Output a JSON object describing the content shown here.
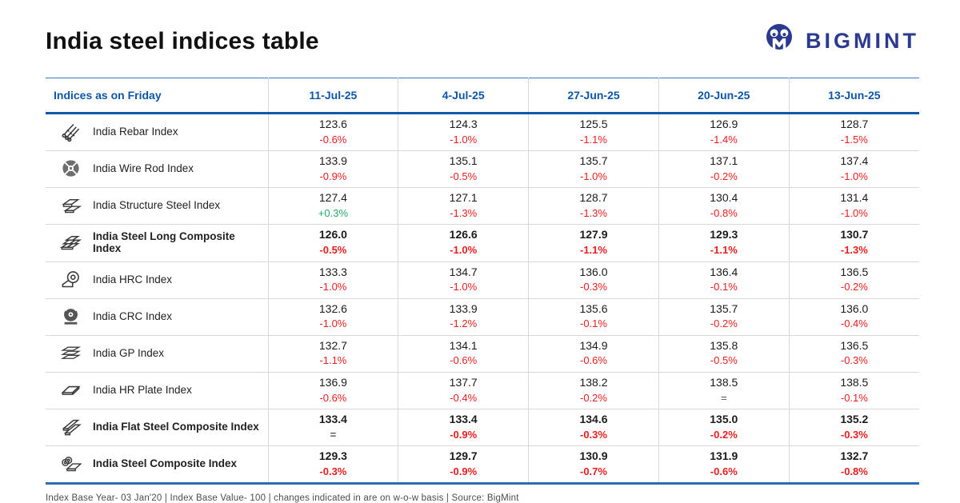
{
  "page": {
    "title": "India steel indices table",
    "brand_name": "BIGMINT",
    "footer": "Index Base Year- 03 Jan'20 | Index Base Value- 100 | changes indicated in are on w-o-w basis | Source: BigMint"
  },
  "colors": {
    "header_blue": "#0e57a8",
    "negative_red": "#ef1d1d",
    "positive_green": "#23ab67",
    "neutral_gray": "#555555",
    "brand_navy": "#2b3a8f"
  },
  "table": {
    "first_column_header": "Indices as on Friday",
    "date_headers": [
      "11-Jul-25",
      "4-Jul-25",
      "27-Jun-25",
      "20-Jun-25",
      "13-Jun-25"
    ],
    "rows": [
      {
        "icon": "rebar-icon",
        "label": "India Rebar Index",
        "bold": false,
        "values": [
          "123.6",
          "124.3",
          "125.5",
          "126.9",
          "128.7"
        ],
        "changes": [
          "-0.6%",
          "-1.0%",
          "-1.1%",
          "-1.4%",
          "-1.5%"
        ]
      },
      {
        "icon": "wire-rod-icon",
        "label": "India Wire Rod Index",
        "bold": false,
        "values": [
          "133.9",
          "135.1",
          "135.7",
          "137.1",
          "137.4"
        ],
        "changes": [
          "-0.9%",
          "-0.5%",
          "-1.0%",
          "-0.2%",
          "-1.0%"
        ]
      },
      {
        "icon": "structure-steel-icon",
        "label": "India Structure Steel Index",
        "bold": false,
        "values": [
          "127.4",
          "127.1",
          "128.7",
          "130.4",
          "131.4"
        ],
        "changes": [
          "+0.3%",
          "-1.3%",
          "-1.3%",
          "-0.8%",
          "-1.0%"
        ]
      },
      {
        "icon": "steel-long-composite-icon",
        "label": "India Steel Long Composite Index",
        "bold": true,
        "values": [
          "126.0",
          "126.6",
          "127.9",
          "129.3",
          "130.7"
        ],
        "changes": [
          "-0.5%",
          "-1.0%",
          "-1.1%",
          "-1.1%",
          "-1.3%"
        ]
      },
      {
        "icon": "hrc-coil-icon",
        "label": "India HRC Index",
        "bold": false,
        "values": [
          "133.3",
          "134.7",
          "136.0",
          "136.4",
          "136.5"
        ],
        "changes": [
          "-1.0%",
          "-1.0%",
          "-0.3%",
          "-0.1%",
          "-0.2%"
        ]
      },
      {
        "icon": "crc-coil-icon",
        "label": "India CRC Index",
        "bold": false,
        "values": [
          "132.6",
          "133.9",
          "135.6",
          "135.7",
          "136.0"
        ],
        "changes": [
          "-1.0%",
          "-1.2%",
          "-0.1%",
          "-0.2%",
          "-0.4%"
        ]
      },
      {
        "icon": "gp-sheets-icon",
        "label": "India GP Index",
        "bold": false,
        "values": [
          "132.7",
          "134.1",
          "134.9",
          "135.8",
          "136.5"
        ],
        "changes": [
          "-1.1%",
          "-0.6%",
          "-0.6%",
          "-0.5%",
          "-0.3%"
        ]
      },
      {
        "icon": "hr-plate-icon",
        "label": "India HR Plate Index",
        "bold": false,
        "values": [
          "136.9",
          "137.7",
          "138.2",
          "138.5",
          "138.5"
        ],
        "changes": [
          "-0.6%",
          "-0.4%",
          "-0.2%",
          "=",
          "-0.1%"
        ]
      },
      {
        "icon": "flat-steel-composite-icon",
        "label": "India Flat Steel Composite Index",
        "bold": true,
        "values": [
          "133.4",
          "133.4",
          "134.6",
          "135.0",
          "135.2"
        ],
        "changes": [
          "=",
          "-0.9%",
          "-0.3%",
          "-0.2%",
          "-0.3%"
        ]
      },
      {
        "icon": "steel-composite-icon",
        "label": "India Steel Composite Index",
        "bold": true,
        "values": [
          "129.3",
          "129.7",
          "130.9",
          "131.9",
          "132.7"
        ],
        "changes": [
          "-0.3%",
          "-0.9%",
          "-0.7%",
          "-0.6%",
          "-0.8%"
        ]
      }
    ]
  },
  "chart_data": {
    "type": "table",
    "title": "India steel indices table",
    "columns": [
      "Indices as on Friday",
      "11-Jul-25",
      "4-Jul-25",
      "27-Jun-25",
      "20-Jun-25",
      "13-Jun-25"
    ],
    "series": [
      {
        "name": "India Rebar Index",
        "values": [
          123.6,
          124.3,
          125.5,
          126.9,
          128.7
        ],
        "wow_changes": [
          "-0.6%",
          "-1.0%",
          "-1.1%",
          "-1.4%",
          "-1.5%"
        ]
      },
      {
        "name": "India Wire Rod Index",
        "values": [
          133.9,
          135.1,
          135.7,
          137.1,
          137.4
        ],
        "wow_changes": [
          "-0.9%",
          "-0.5%",
          "-1.0%",
          "-0.2%",
          "-1.0%"
        ]
      },
      {
        "name": "India Structure Steel Index",
        "values": [
          127.4,
          127.1,
          128.7,
          130.4,
          131.4
        ],
        "wow_changes": [
          "+0.3%",
          "-1.3%",
          "-1.3%",
          "-0.8%",
          "-1.0%"
        ]
      },
      {
        "name": "India Steel Long Composite Index",
        "values": [
          126.0,
          126.6,
          127.9,
          129.3,
          130.7
        ],
        "wow_changes": [
          "-0.5%",
          "-1.0%",
          "-1.1%",
          "-1.1%",
          "-1.3%"
        ]
      },
      {
        "name": "India HRC Index",
        "values": [
          133.3,
          134.7,
          136.0,
          136.4,
          136.5
        ],
        "wow_changes": [
          "-1.0%",
          "-1.0%",
          "-0.3%",
          "-0.1%",
          "-0.2%"
        ]
      },
      {
        "name": "India CRC Index",
        "values": [
          132.6,
          133.9,
          135.6,
          135.7,
          136.0
        ],
        "wow_changes": [
          "-1.0%",
          "-1.2%",
          "-0.1%",
          "-0.2%",
          "-0.4%"
        ]
      },
      {
        "name": "India GP Index",
        "values": [
          132.7,
          134.1,
          134.9,
          135.8,
          136.5
        ],
        "wow_changes": [
          "-1.1%",
          "-0.6%",
          "-0.6%",
          "-0.5%",
          "-0.3%"
        ]
      },
      {
        "name": "India HR Plate Index",
        "values": [
          136.9,
          137.7,
          138.2,
          138.5,
          138.5
        ],
        "wow_changes": [
          "-0.6%",
          "-0.4%",
          "-0.2%",
          "=",
          "-0.1%"
        ]
      },
      {
        "name": "India Flat Steel Composite Index",
        "values": [
          133.4,
          133.4,
          134.6,
          135.0,
          135.2
        ],
        "wow_changes": [
          "=",
          "-0.9%",
          "-0.3%",
          "-0.2%",
          "-0.3%"
        ]
      },
      {
        "name": "India Steel Composite Index",
        "values": [
          129.3,
          129.7,
          130.9,
          131.9,
          132.7
        ],
        "wow_changes": [
          "-0.3%",
          "-0.9%",
          "-0.7%",
          "-0.6%",
          "-0.8%"
        ]
      }
    ],
    "footnote": "Index Base Year- 03 Jan'20 | Index Base Value- 100 | changes indicated in are on w-o-w basis | Source: BigMint"
  }
}
